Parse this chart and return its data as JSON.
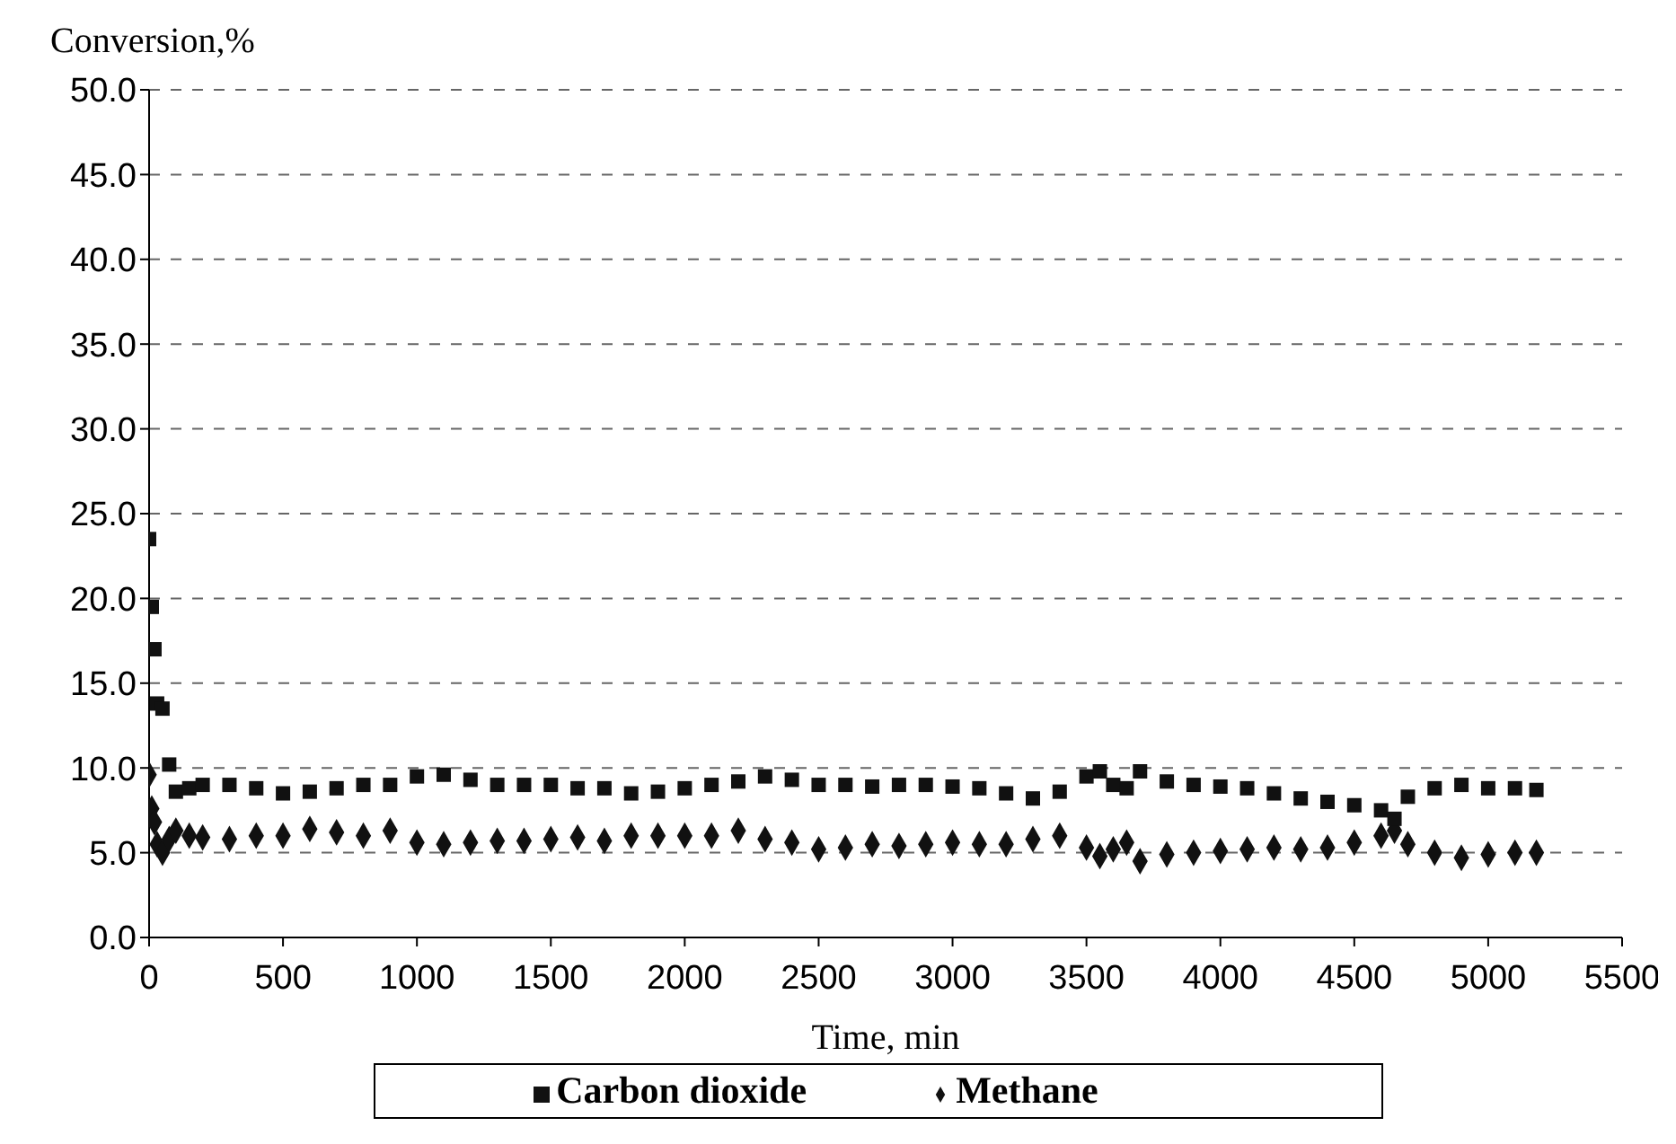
{
  "chart_data": {
    "type": "scatter",
    "xlabel": "Time, min",
    "ylabel": "Conversion,%",
    "x": [
      0,
      10,
      20,
      30,
      50,
      75,
      100,
      150,
      200,
      300,
      400,
      500,
      600,
      700,
      800,
      900,
      1000,
      1100,
      1200,
      1300,
      1400,
      1500,
      1600,
      1700,
      1800,
      1900,
      2000,
      2100,
      2200,
      2300,
      2400,
      2500,
      2600,
      2700,
      2800,
      2900,
      3000,
      3100,
      3200,
      3300,
      3400,
      3500,
      3550,
      3600,
      3650,
      3700,
      3800,
      3900,
      4000,
      4100,
      4200,
      4300,
      4400,
      4500,
      4600,
      4650,
      4700,
      4800,
      4900,
      5000,
      5100,
      5180
    ],
    "series": [
      {
        "name": "Methane",
        "color": "#111111",
        "marker": "diamond",
        "values": [
          9.6,
          7.6,
          6.8,
          5.5,
          5.0,
          5.8,
          6.3,
          6.0,
          5.9,
          5.8,
          6.0,
          6.0,
          6.4,
          6.2,
          6.0,
          6.3,
          5.6,
          5.5,
          5.6,
          5.7,
          5.7,
          5.8,
          5.9,
          5.7,
          6.0,
          6.0,
          6.0,
          6.0,
          6.3,
          5.8,
          5.6,
          5.2,
          5.3,
          5.5,
          5.4,
          5.5,
          5.6,
          5.5,
          5.5,
          5.8,
          6.0,
          5.3,
          4.8,
          5.2,
          5.6,
          4.5,
          4.9,
          5.0,
          5.1,
          5.2,
          5.3,
          5.2,
          5.3,
          5.6,
          6.0,
          6.3,
          5.5,
          5.0,
          4.7,
          4.9,
          5.0,
          5.0
        ]
      },
      {
        "name": "Carbon dioxide",
        "color": "#111111",
        "marker": "square",
        "values": [
          23.5,
          19.5,
          17.0,
          13.8,
          13.5,
          10.2,
          8.6,
          8.8,
          9.0,
          9.0,
          8.8,
          8.5,
          8.6,
          8.8,
          9.0,
          9.0,
          9.5,
          9.6,
          9.3,
          9.0,
          9.0,
          9.0,
          8.8,
          8.8,
          8.5,
          8.6,
          8.8,
          9.0,
          9.2,
          9.5,
          9.3,
          9.0,
          9.0,
          8.9,
          9.0,
          9.0,
          8.9,
          8.8,
          8.5,
          8.2,
          8.6,
          9.5,
          9.8,
          9.0,
          8.8,
          9.8,
          9.2,
          9.0,
          8.9,
          8.8,
          8.5,
          8.2,
          8.0,
          7.8,
          7.5,
          7.0,
          8.3,
          8.8,
          9.0,
          8.8,
          8.8,
          8.7
        ]
      }
    ],
    "xlim": [
      0,
      5500
    ],
    "xticks": [
      0,
      500,
      1000,
      1500,
      2000,
      2500,
      3000,
      3500,
      4000,
      4500,
      5000,
      5500
    ],
    "ylim": [
      0,
      50
    ],
    "yticks": [
      {
        "value": 0,
        "label": "0.0"
      },
      {
        "value": 5,
        "label": "5.0"
      },
      {
        "value": 10,
        "label": "10.0"
      },
      {
        "value": 15,
        "label": "15.0"
      },
      {
        "value": 20,
        "label": "20.0"
      },
      {
        "value": 25,
        "label": "25.0"
      },
      {
        "value": 30,
        "label": "30.0"
      },
      {
        "value": 35,
        "label": "35.0"
      },
      {
        "value": 40,
        "label": "40.0"
      },
      {
        "value": 45,
        "label": "45.0"
      },
      {
        "value": 50,
        "label": "50.0"
      }
    ],
    "grid": "y",
    "legend": "bottom"
  }
}
